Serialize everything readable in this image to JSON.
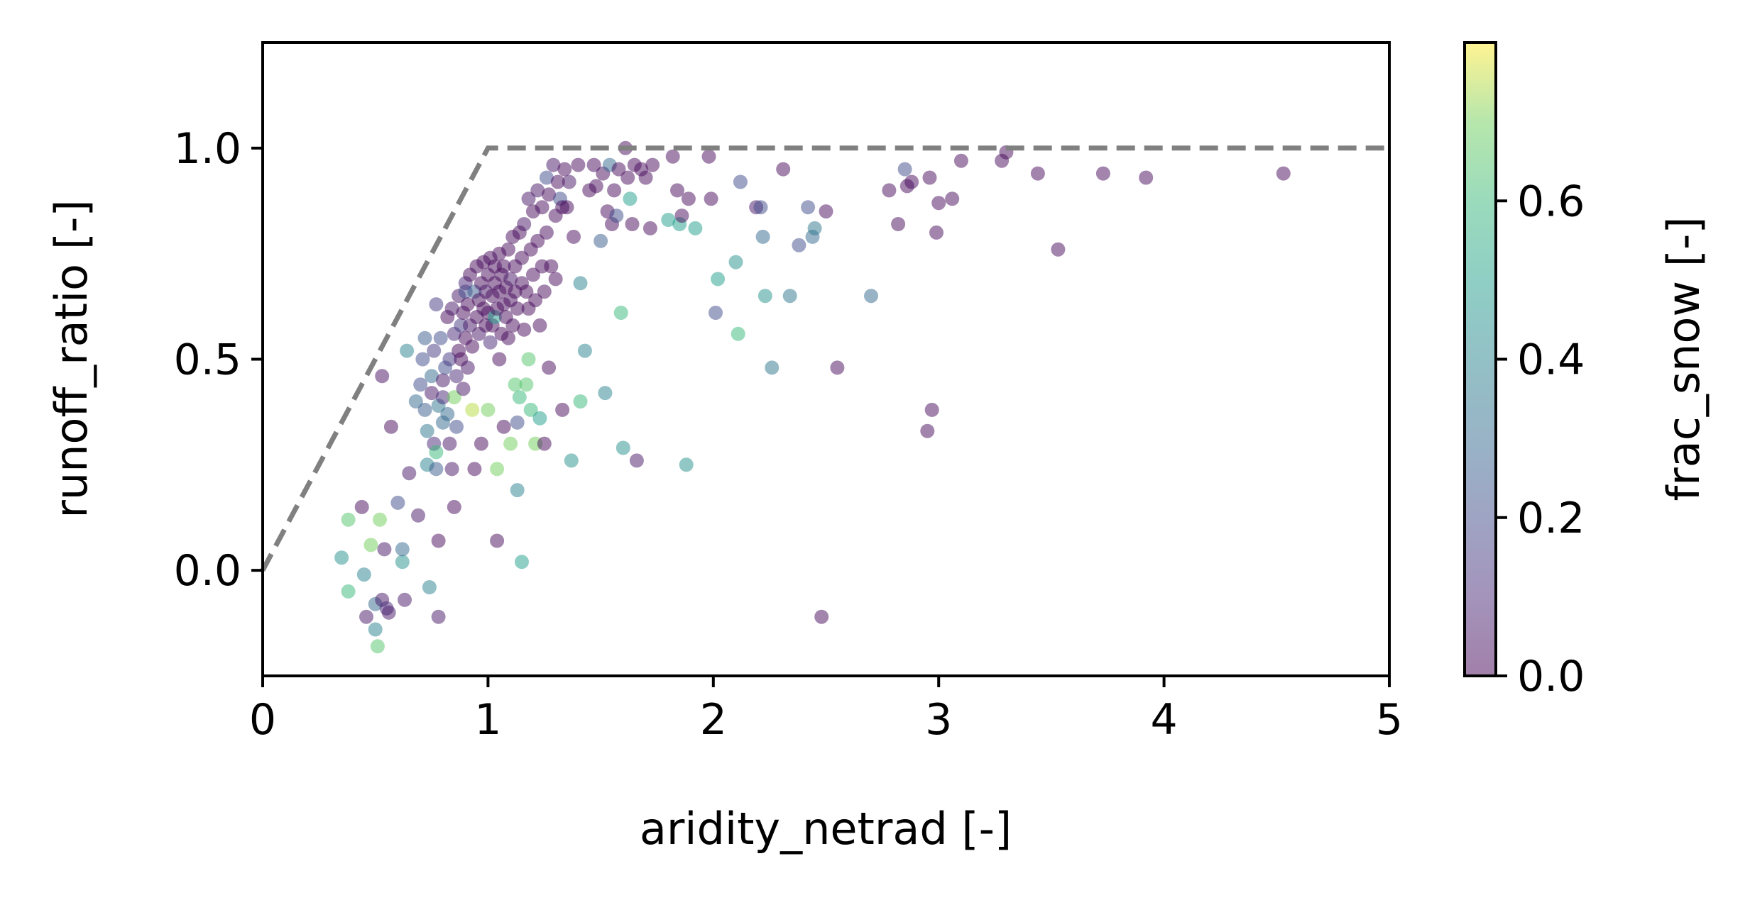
{
  "chart_data": {
    "type": "scatter",
    "xlabel": "aridity_netrad [-]",
    "ylabel": "runoff_ratio [-]",
    "xlim": [
      0,
      5
    ],
    "ylim": [
      -0.25,
      1.25
    ],
    "xticks": [
      "0",
      "1",
      "2",
      "3",
      "4",
      "5"
    ],
    "yticks": [
      "0.0",
      "0.5",
      "1.0"
    ],
    "grid": false,
    "marker_opacity": 0.5,
    "colorbar": {
      "label": "frac_snow [-]",
      "range": [
        0.0,
        0.8
      ],
      "ticks": [
        "0.0",
        "0.2",
        "0.4",
        "0.6"
      ],
      "colormap": "viridis"
    },
    "reference_line": {
      "style": "dashed",
      "color": "#808080",
      "points": [
        [
          0,
          0
        ],
        [
          1,
          1
        ],
        [
          5,
          1
        ]
      ]
    },
    "points": [
      [
        0.35,
        0.03,
        0.45
      ],
      [
        0.38,
        -0.05,
        0.6
      ],
      [
        0.38,
        0.12,
        0.65
      ],
      [
        0.44,
        0.15,
        0.02
      ],
      [
        0.45,
        -0.01,
        0.4
      ],
      [
        0.46,
        -0.11,
        0.05
      ],
      [
        0.48,
        0.06,
        0.7
      ],
      [
        0.5,
        -0.08,
        0.3
      ],
      [
        0.5,
        -0.14,
        0.4
      ],
      [
        0.51,
        -0.18,
        0.65
      ],
      [
        0.52,
        0.12,
        0.7
      ],
      [
        0.53,
        -0.07,
        0.05
      ],
      [
        0.54,
        0.05,
        0.05
      ],
      [
        0.55,
        -0.09,
        0.1
      ],
      [
        0.56,
        -0.1,
        0.05
      ],
      [
        0.6,
        0.16,
        0.2
      ],
      [
        0.62,
        0.02,
        0.45
      ],
      [
        0.62,
        0.05,
        0.3
      ],
      [
        0.63,
        -0.07,
        0.05
      ],
      [
        0.57,
        0.34,
        0.02
      ],
      [
        0.53,
        0.46,
        0.03
      ],
      [
        0.64,
        0.52,
        0.4
      ],
      [
        0.65,
        0.23,
        0.05
      ],
      [
        0.68,
        0.4,
        0.3
      ],
      [
        0.69,
        0.13,
        0.05
      ],
      [
        0.7,
        0.44,
        0.2
      ],
      [
        0.71,
        0.5,
        0.2
      ],
      [
        0.72,
        0.38,
        0.25
      ],
      [
        0.72,
        0.55,
        0.25
      ],
      [
        0.73,
        0.25,
        0.4
      ],
      [
        0.73,
        0.33,
        0.35
      ],
      [
        0.74,
        -0.04,
        0.4
      ],
      [
        0.75,
        0.42,
        0.05
      ],
      [
        0.75,
        0.46,
        0.3
      ],
      [
        0.76,
        0.3,
        0.1
      ],
      [
        0.76,
        0.52,
        0.15
      ],
      [
        0.77,
        0.28,
        0.6
      ],
      [
        0.77,
        0.24,
        0.25
      ],
      [
        0.77,
        0.63,
        0.15
      ],
      [
        0.78,
        0.07,
        0.02
      ],
      [
        0.78,
        -0.11,
        0.05
      ],
      [
        0.78,
        0.39,
        0.35
      ],
      [
        0.79,
        0.55,
        0.2
      ],
      [
        0.8,
        0.41,
        0.1
      ],
      [
        0.8,
        0.35,
        0.3
      ],
      [
        0.8,
        0.45,
        0.05
      ],
      [
        0.81,
        0.48,
        0.2
      ],
      [
        0.82,
        0.37,
        0.3
      ],
      [
        0.82,
        0.6,
        0.02
      ],
      [
        0.83,
        0.5,
        0.15
      ],
      [
        0.83,
        0.3,
        0.05
      ],
      [
        0.84,
        0.24,
        0.05
      ],
      [
        0.84,
        0.62,
        0.05
      ],
      [
        0.85,
        0.15,
        0.02
      ],
      [
        0.85,
        0.41,
        0.7
      ],
      [
        0.85,
        0.56,
        0.1
      ],
      [
        0.86,
        0.34,
        0.2
      ],
      [
        0.86,
        0.46,
        0.1
      ],
      [
        0.87,
        0.52,
        0.02
      ],
      [
        0.87,
        0.65,
        0.05
      ],
      [
        0.88,
        0.5,
        0.02
      ],
      [
        0.88,
        0.58,
        0.15
      ],
      [
        0.89,
        0.43,
        0.05
      ],
      [
        0.89,
        0.61,
        0.02
      ],
      [
        0.9,
        0.66,
        0.2
      ],
      [
        0.9,
        0.55,
        0.02
      ],
      [
        0.9,
        0.68,
        0.1
      ],
      [
        0.91,
        0.48,
        0.05
      ],
      [
        0.91,
        0.63,
        0.02
      ],
      [
        0.92,
        0.58,
        0.05
      ],
      [
        0.92,
        0.7,
        0.02
      ],
      [
        0.93,
        0.38,
        0.75
      ],
      [
        0.93,
        0.53,
        0.02
      ],
      [
        0.94,
        0.66,
        0.25
      ],
      [
        0.94,
        0.24,
        0.02
      ],
      [
        0.95,
        0.6,
        0.02
      ],
      [
        0.95,
        0.72,
        0.02
      ],
      [
        0.96,
        0.64,
        0.02
      ],
      [
        0.96,
        0.56,
        0.05
      ],
      [
        0.97,
        0.68,
        0.02
      ],
      [
        0.97,
        0.3,
        0.02
      ],
      [
        0.98,
        0.62,
        0.02
      ],
      [
        0.98,
        0.73,
        0.02
      ],
      [
        0.99,
        0.58,
        0.02
      ],
      [
        0.99,
        0.66,
        0.05
      ],
      [
        1.0,
        0.7,
        0.02
      ],
      [
        1.0,
        0.38,
        0.7
      ],
      [
        1.0,
        0.61,
        0.02
      ],
      [
        1.01,
        0.74,
        0.02
      ],
      [
        1.01,
        0.54,
        0.1
      ],
      [
        1.02,
        0.65,
        0.02
      ],
      [
        1.02,
        0.58,
        0.02
      ],
      [
        1.03,
        0.72,
        0.02
      ],
      [
        1.03,
        0.68,
        0.02
      ],
      [
        1.03,
        0.6,
        0.5
      ],
      [
        1.04,
        0.62,
        0.02
      ],
      [
        1.04,
        0.07,
        0.02
      ],
      [
        1.04,
        0.24,
        0.7
      ],
      [
        1.05,
        0.75,
        0.02
      ],
      [
        1.05,
        0.66,
        0.02
      ],
      [
        1.05,
        0.5,
        0.02
      ],
      [
        1.06,
        0.7,
        0.02
      ],
      [
        1.06,
        0.56,
        0.02
      ],
      [
        1.07,
        0.63,
        0.02
      ],
      [
        1.07,
        0.72,
        0.02
      ],
      [
        1.07,
        0.34,
        0.02
      ],
      [
        1.08,
        0.6,
        0.02
      ],
      [
        1.08,
        0.67,
        0.02
      ],
      [
        1.09,
        0.76,
        0.02
      ],
      [
        1.09,
        0.55,
        0.02
      ],
      [
        1.1,
        0.64,
        0.02
      ],
      [
        1.1,
        0.69,
        0.05
      ],
      [
        1.1,
        0.3,
        0.7
      ],
      [
        1.11,
        0.58,
        0.02
      ],
      [
        1.11,
        0.79,
        0.02
      ],
      [
        1.12,
        0.66,
        0.02
      ],
      [
        1.12,
        0.44,
        0.65
      ],
      [
        1.12,
        0.72,
        0.02
      ],
      [
        1.13,
        0.19,
        0.4
      ],
      [
        1.13,
        0.35,
        0.2
      ],
      [
        1.13,
        0.62,
        0.02
      ],
      [
        1.14,
        0.8,
        0.02
      ],
      [
        1.14,
        0.41,
        0.6
      ],
      [
        1.15,
        0.68,
        0.02
      ],
      [
        1.15,
        0.02,
        0.5
      ],
      [
        1.15,
        0.74,
        0.02
      ],
      [
        1.16,
        0.57,
        0.02
      ],
      [
        1.16,
        0.82,
        0.05
      ],
      [
        1.17,
        0.66,
        0.02
      ],
      [
        1.17,
        0.44,
        0.65
      ],
      [
        1.18,
        0.62,
        0.02
      ],
      [
        1.18,
        0.5,
        0.65
      ],
      [
        1.18,
        0.88,
        0.05
      ],
      [
        1.19,
        0.76,
        0.02
      ],
      [
        1.19,
        0.38,
        0.6
      ],
      [
        1.2,
        0.7,
        0.02
      ],
      [
        1.2,
        0.85,
        0.02
      ],
      [
        1.21,
        0.64,
        0.02
      ],
      [
        1.21,
        0.3,
        0.7
      ],
      [
        1.22,
        0.9,
        0.05
      ],
      [
        1.22,
        0.78,
        0.02
      ],
      [
        1.23,
        0.36,
        0.5
      ],
      [
        1.23,
        0.58,
        0.02
      ],
      [
        1.24,
        0.72,
        0.02
      ],
      [
        1.24,
        0.86,
        0.02
      ],
      [
        1.25,
        0.3,
        0.02
      ],
      [
        1.25,
        0.66,
        0.02
      ],
      [
        1.26,
        0.93,
        0.2
      ],
      [
        1.26,
        0.8,
        0.02
      ],
      [
        1.27,
        0.48,
        0.02
      ],
      [
        1.27,
        0.89,
        0.02
      ],
      [
        1.28,
        0.72,
        0.02
      ],
      [
        1.29,
        0.96,
        0.05
      ],
      [
        1.3,
        0.84,
        0.02
      ],
      [
        1.3,
        0.69,
        0.02
      ],
      [
        1.31,
        0.92,
        0.02
      ],
      [
        1.32,
        0.88,
        0.2
      ],
      [
        1.33,
        0.38,
        0.02
      ],
      [
        1.33,
        0.86,
        0.02
      ],
      [
        1.34,
        0.95,
        0.02
      ],
      [
        1.35,
        0.86,
        0.02
      ],
      [
        1.36,
        0.92,
        0.05
      ],
      [
        1.37,
        0.26,
        0.45
      ],
      [
        1.38,
        0.79,
        0.02
      ],
      [
        1.4,
        0.96,
        0.02
      ],
      [
        1.41,
        0.68,
        0.4
      ],
      [
        1.41,
        0.4,
        0.6
      ],
      [
        1.43,
        0.52,
        0.4
      ],
      [
        1.45,
        0.9,
        0.02
      ],
      [
        1.47,
        0.96,
        0.02
      ],
      [
        1.48,
        0.91,
        0.02
      ],
      [
        1.5,
        0.78,
        0.25
      ],
      [
        1.51,
        0.94,
        0.02
      ],
      [
        1.52,
        0.42,
        0.4
      ],
      [
        1.53,
        0.85,
        0.02
      ],
      [
        1.54,
        0.96,
        0.3
      ],
      [
        1.55,
        0.82,
        0.02
      ],
      [
        1.56,
        0.9,
        0.02
      ],
      [
        1.57,
        0.84,
        0.2
      ],
      [
        1.58,
        0.95,
        0.02
      ],
      [
        1.59,
        0.61,
        0.6
      ],
      [
        1.6,
        0.29,
        0.45
      ],
      [
        1.61,
        1.0,
        0.02
      ],
      [
        1.62,
        0.93,
        0.02
      ],
      [
        1.63,
        0.88,
        0.5
      ],
      [
        1.64,
        0.82,
        0.02
      ],
      [
        1.65,
        0.96,
        0.02
      ],
      [
        1.66,
        0.26,
        0.05
      ],
      [
        1.68,
        0.95,
        0.02
      ],
      [
        1.7,
        0.93,
        0.02
      ],
      [
        1.72,
        0.81,
        0.02
      ],
      [
        1.73,
        0.96,
        0.02
      ],
      [
        1.8,
        0.83,
        0.5
      ],
      [
        1.82,
        0.98,
        0.02
      ],
      [
        1.84,
        0.9,
        0.02
      ],
      [
        1.85,
        0.82,
        0.5
      ],
      [
        1.86,
        0.84,
        0.02
      ],
      [
        1.88,
        0.25,
        0.45
      ],
      [
        1.89,
        0.88,
        0.02
      ],
      [
        1.92,
        0.81,
        0.5
      ],
      [
        1.98,
        0.98,
        0.02
      ],
      [
        1.99,
        0.88,
        0.02
      ],
      [
        2.01,
        0.61,
        0.2
      ],
      [
        2.02,
        0.69,
        0.5
      ],
      [
        2.1,
        0.73,
        0.45
      ],
      [
        2.11,
        0.56,
        0.6
      ],
      [
        2.12,
        0.92,
        0.2
      ],
      [
        2.19,
        0.86,
        0.05
      ],
      [
        2.21,
        0.86,
        0.2
      ],
      [
        2.22,
        0.79,
        0.3
      ],
      [
        2.23,
        0.65,
        0.45
      ],
      [
        2.26,
        0.48,
        0.35
      ],
      [
        2.31,
        0.95,
        0.02
      ],
      [
        2.34,
        0.65,
        0.35
      ],
      [
        2.38,
        0.77,
        0.2
      ],
      [
        2.42,
        0.86,
        0.2
      ],
      [
        2.44,
        0.79,
        0.3
      ],
      [
        2.45,
        0.81,
        0.35
      ],
      [
        2.48,
        -0.11,
        0.02
      ],
      [
        2.5,
        0.85,
        0.02
      ],
      [
        2.55,
        0.48,
        0.02
      ],
      [
        2.7,
        0.65,
        0.3
      ],
      [
        2.78,
        0.9,
        0.02
      ],
      [
        2.82,
        0.82,
        0.02
      ],
      [
        2.85,
        0.95,
        0.2
      ],
      [
        2.86,
        0.91,
        0.02
      ],
      [
        2.88,
        0.92,
        0.02
      ],
      [
        2.95,
        0.33,
        0.02
      ],
      [
        2.96,
        0.93,
        0.02
      ],
      [
        2.97,
        0.38,
        0.02
      ],
      [
        2.99,
        0.8,
        0.02
      ],
      [
        3.0,
        0.87,
        0.02
      ],
      [
        3.06,
        0.88,
        0.02
      ],
      [
        3.1,
        0.97,
        0.02
      ],
      [
        3.28,
        0.97,
        0.02
      ],
      [
        3.3,
        0.99,
        0.02
      ],
      [
        3.44,
        0.94,
        0.02
      ],
      [
        3.53,
        0.76,
        0.02
      ],
      [
        3.73,
        0.94,
        0.02
      ],
      [
        3.92,
        0.93,
        0.02
      ],
      [
        4.53,
        0.94,
        0.02
      ]
    ]
  }
}
